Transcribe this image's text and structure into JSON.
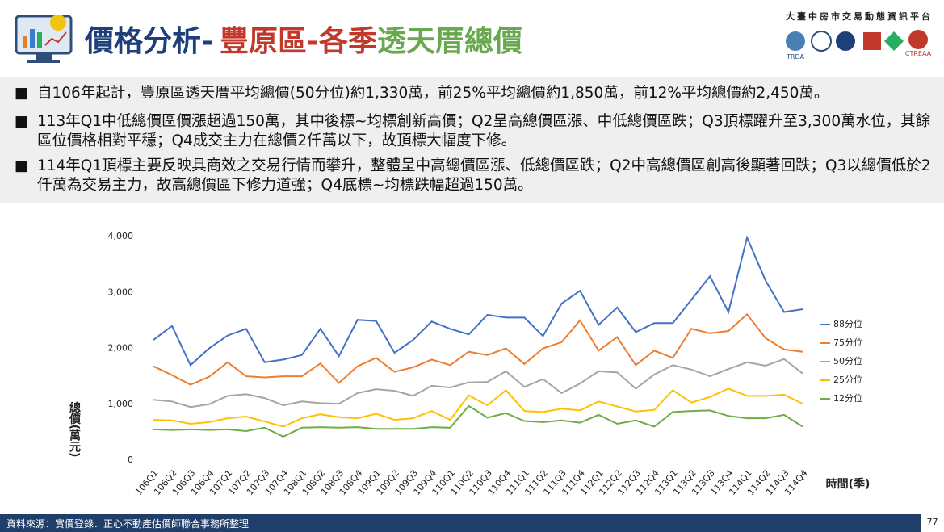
{
  "header": {
    "title_parts": [
      "價格分析-",
      "豐原區-各季",
      "透天厝總價"
    ],
    "platform": "大臺中房市交易動態資訊平台",
    "logos": [
      "TRDA",
      "CTREAA"
    ]
  },
  "notes": [
    "自106年起計，豐原區透天厝平均總價(50分位)約1,330萬，前25%平均總價約1,850萬，前12%平均總價約2,450萬。",
    "113年Q1中低總價區價漲超過150萬，其中後標~均標創新高價；Q2呈高總價區漲、中低總價區跌；Q3頂標躍升至3,300萬水位，其餘區位價格相對平穩；Q4成交主力在總價2仟萬以下，故頂標大幅度下修。",
    "114年Q1頂標主要反映具商效之交易行情而攀升，整體呈中高總價區漲、低總價區跌；Q2中高總價區創高後顯著回跌；Q3以總價低於2仟萬為交易主力，故高總價區下修力道強；Q4底標~均標跌幅超過150萬。"
  ],
  "footer": {
    "source": "資料來源：實價登錄．正心不動產估價師聯合事務所整理",
    "page_number": "77"
  },
  "chart_data": {
    "type": "line",
    "y_label": "總價(萬元)",
    "x_label": "時間(季)",
    "categories": [
      "106Q1",
      "106Q2",
      "106Q3",
      "106Q4",
      "107Q1",
      "107Q2",
      "107Q3",
      "107Q4",
      "108Q1",
      "108Q2",
      "108Q3",
      "108Q4",
      "109Q1",
      "109Q2",
      "109Q3",
      "109Q4",
      "110Q1",
      "110Q2",
      "110Q3",
      "110Q4",
      "111Q1",
      "111Q2",
      "111Q3",
      "111Q4",
      "112Q1",
      "112Q2",
      "112Q3",
      "112Q4",
      "113Q1",
      "113Q2",
      "113Q3",
      "113Q4",
      "114Q1",
      "114Q2",
      "114Q3",
      "114Q4"
    ],
    "ylim": [
      0,
      4000
    ],
    "yticks": [
      0,
      {
        "value": 1000,
        "label": "1,000"
      },
      {
        "value": 2000,
        "label": "2,000"
      },
      {
        "value": 3000,
        "label": "3,000"
      },
      {
        "value": 4000,
        "label": "4,000"
      }
    ],
    "grid": false,
    "legend": "right",
    "series": [
      {
        "name": "88分位",
        "color": "#4472c4",
        "values": [
          2150,
          2400,
          1700,
          2000,
          2230,
          2350,
          1750,
          1800,
          1880,
          2350,
          1860,
          2510,
          2490,
          1920,
          2150,
          2480,
          2350,
          2250,
          2600,
          2550,
          2550,
          2220,
          2800,
          3030,
          2420,
          2730,
          2290,
          2450,
          2450,
          2870,
          3290,
          2650,
          3980,
          3210,
          2650,
          2700
        ]
      },
      {
        "name": "75分位",
        "color": "#ed7d31",
        "values": [
          1680,
          1520,
          1350,
          1490,
          1750,
          1500,
          1480,
          1500,
          1500,
          1730,
          1380,
          1680,
          1830,
          1580,
          1660,
          1800,
          1700,
          1940,
          1880,
          2000,
          1720,
          2000,
          2110,
          2500,
          1960,
          2200,
          1700,
          1960,
          1830,
          2350,
          2270,
          2310,
          2610,
          2180,
          1980,
          1940
        ]
      },
      {
        "name": "50分位",
        "color": "#a5a5a5",
        "values": [
          1080,
          1050,
          950,
          1000,
          1150,
          1180,
          1110,
          980,
          1050,
          1020,
          1010,
          1200,
          1270,
          1240,
          1150,
          1330,
          1300,
          1390,
          1400,
          1590,
          1310,
          1450,
          1200,
          1370,
          1590,
          1570,
          1280,
          1530,
          1700,
          1620,
          1500,
          1630,
          1750,
          1690,
          1810,
          1550
        ]
      },
      {
        "name": "25分位",
        "color": "#ffc000",
        "values": [
          720,
          710,
          650,
          680,
          750,
          780,
          690,
          600,
          750,
          820,
          770,
          750,
          830,
          720,
          750,
          880,
          720,
          1160,
          980,
          1250,
          880,
          860,
          920,
          890,
          1050,
          960,
          870,
          900,
          1250,
          1030,
          1130,
          1280,
          1150,
          1150,
          1170,
          1010
        ]
      },
      {
        "name": "12分位",
        "color": "#70ad47",
        "values": [
          550,
          540,
          550,
          540,
          550,
          520,
          580,
          420,
          580,
          590,
          580,
          590,
          560,
          560,
          560,
          590,
          580,
          970,
          760,
          840,
          700,
          680,
          710,
          670,
          810,
          650,
          710,
          600,
          860,
          880,
          890,
          790,
          750,
          750,
          810,
          600
        ]
      }
    ]
  }
}
